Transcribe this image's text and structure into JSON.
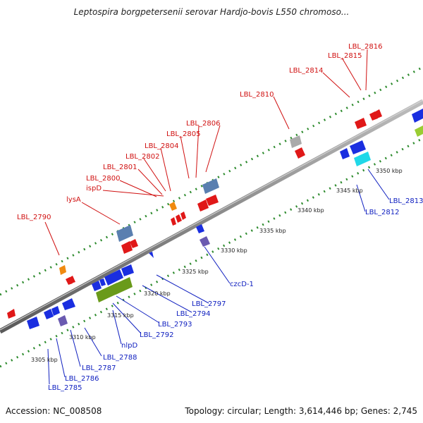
{
  "title": "Leptospira borgpetersenii serovar Hardjo-bovis L550 chromoso...",
  "footer": {
    "accession": "Accession: NC_008508",
    "summary": "Topology: circular; Length: 3,614,446 bp; Genes: 2,745"
  },
  "colors": {
    "backbone": "#8a8a8a",
    "track_dots": "#2e8b2e",
    "upper_label": "#d01010",
    "lower_label": "#1020c0"
  },
  "scale_ticks": [
    "3305 kbp",
    "3310 kbp",
    "3315 kbp",
    "3320 kbp",
    "3325 kbp",
    "3330 kbp",
    "3335 kbp",
    "3340 kbp",
    "3345 kbp",
    "3350 kbp"
  ],
  "upper_labels": [
    "LBL_2790",
    "lysA",
    "ispD",
    "LBL_2800",
    "LBL_2801",
    "LBL_2802",
    "LBL_2804",
    "LBL_2805",
    "LBL_2806",
    "LBL_2810",
    "LBL_2814",
    "LBL_2815",
    "LBL_2816"
  ],
  "lower_labels": [
    "LBL_2785",
    "LBL_2786",
    "LBL_2787",
    "LBL_2788",
    "nlpD",
    "LBL_2792",
    "LBL_2793",
    "LBL_2794",
    "LBL_2797",
    "czcD-1",
    "LBL_2812",
    "LBL_2813"
  ],
  "features": [
    {
      "kind": "cds-reverse",
      "color": "#e01818"
    },
    {
      "kind": "cds-forward",
      "color": "#1a2ee0"
    },
    {
      "kind": "rna",
      "color": "#6a9a1a"
    },
    {
      "kind": "other",
      "color": "#f08a10"
    },
    {
      "kind": "repeat",
      "color": "#5a7fb0"
    },
    {
      "kind": "pseudo",
      "color": "#aaaaaa"
    },
    {
      "kind": "misc",
      "color": "#20d8e8"
    },
    {
      "kind": "misc2",
      "color": "#6a5ab0"
    }
  ]
}
